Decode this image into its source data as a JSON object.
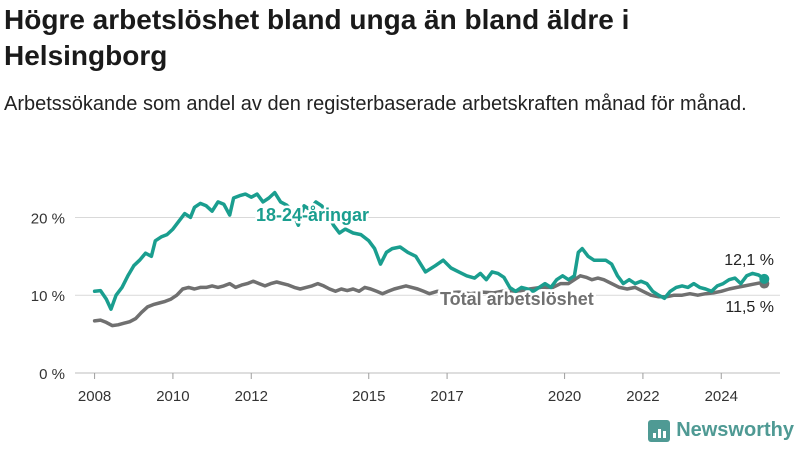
{
  "header": {
    "title": "Högre arbetslöshet bland unga än bland äldre i Helsingborg",
    "subtitle": "Arbetssökande som andel av den registerbaserade arbetskraften månad för månad."
  },
  "brand": {
    "name": "Newsworthy",
    "icon": "bar-chart-logo-icon"
  },
  "colors": {
    "young": "#1a9e8f",
    "total": "#707070",
    "grid": "#d9d9d9",
    "brand": "#4f9a94"
  },
  "chart_data": {
    "type": "line",
    "grid": true,
    "ylim": [
      0,
      22.5
    ],
    "yticks": [
      {
        "value": 0,
        "label": "0 %"
      },
      {
        "value": 10,
        "label": "10 %"
      },
      {
        "value": 20,
        "label": "20 %"
      }
    ],
    "xlim": [
      2007.5,
      2025.5
    ],
    "xticks": [
      {
        "value": 2008,
        "label": "2008"
      },
      {
        "value": 2010,
        "label": "2010"
      },
      {
        "value": 2012,
        "label": "2012"
      },
      {
        "value": 2015,
        "label": "2015"
      },
      {
        "value": 2017,
        "label": "2017"
      },
      {
        "value": 2020,
        "label": "2020"
      },
      {
        "value": 2022,
        "label": "2022"
      },
      {
        "value": 2024,
        "label": "2024"
      }
    ],
    "series": [
      {
        "name": "18-24-åringar",
        "end_label": "12,1 %",
        "points": [
          [
            2008.0,
            10.5
          ],
          [
            2008.15,
            10.6
          ],
          [
            2008.3,
            9.5
          ],
          [
            2008.42,
            8.2
          ],
          [
            2008.55,
            10.0
          ],
          [
            2008.7,
            11.0
          ],
          [
            2008.85,
            12.5
          ],
          [
            2009.0,
            13.8
          ],
          [
            2009.15,
            14.5
          ],
          [
            2009.3,
            15.4
          ],
          [
            2009.45,
            15.0
          ],
          [
            2009.55,
            17.0
          ],
          [
            2009.7,
            17.5
          ],
          [
            2009.85,
            17.8
          ],
          [
            2010.0,
            18.5
          ],
          [
            2010.15,
            19.5
          ],
          [
            2010.3,
            20.5
          ],
          [
            2010.45,
            20.0
          ],
          [
            2010.55,
            21.3
          ],
          [
            2010.7,
            21.8
          ],
          [
            2010.85,
            21.5
          ],
          [
            2011.0,
            20.8
          ],
          [
            2011.15,
            22.0
          ],
          [
            2011.3,
            21.7
          ],
          [
            2011.45,
            20.3
          ],
          [
            2011.55,
            22.5
          ],
          [
            2011.7,
            22.8
          ],
          [
            2011.85,
            23.0
          ],
          [
            2012.0,
            22.6
          ],
          [
            2012.15,
            23.0
          ],
          [
            2012.3,
            22.0
          ],
          [
            2012.45,
            22.5
          ],
          [
            2012.6,
            23.2
          ],
          [
            2012.75,
            22.0
          ],
          [
            2012.9,
            21.6
          ],
          [
            2013.05,
            20.8
          ],
          [
            2013.2,
            19.0
          ],
          [
            2013.35,
            21.5
          ],
          [
            2013.5,
            21.0
          ],
          [
            2013.65,
            22.0
          ],
          [
            2013.8,
            21.5
          ],
          [
            2013.95,
            20.5
          ],
          [
            2014.1,
            19.0
          ],
          [
            2014.25,
            18.0
          ],
          [
            2014.4,
            18.5
          ],
          [
            2014.6,
            18.0
          ],
          [
            2014.8,
            17.8
          ],
          [
            2015.0,
            17.0
          ],
          [
            2015.15,
            16.0
          ],
          [
            2015.3,
            14.0
          ],
          [
            2015.45,
            15.5
          ],
          [
            2015.6,
            16.0
          ],
          [
            2015.8,
            16.2
          ],
          [
            2016.0,
            15.5
          ],
          [
            2016.2,
            15.0
          ],
          [
            2016.45,
            13.0
          ],
          [
            2016.7,
            13.8
          ],
          [
            2016.9,
            14.5
          ],
          [
            2017.1,
            13.5
          ],
          [
            2017.3,
            13.0
          ],
          [
            2017.5,
            12.5
          ],
          [
            2017.7,
            12.2
          ],
          [
            2017.85,
            12.8
          ],
          [
            2018.0,
            12.0
          ],
          [
            2018.15,
            13.0
          ],
          [
            2018.3,
            12.8
          ],
          [
            2018.45,
            12.3
          ],
          [
            2018.6,
            11.0
          ],
          [
            2018.75,
            10.5
          ],
          [
            2018.9,
            11.0
          ],
          [
            2019.05,
            10.8
          ],
          [
            2019.2,
            10.5
          ],
          [
            2019.35,
            11.0
          ],
          [
            2019.5,
            11.5
          ],
          [
            2019.65,
            11.0
          ],
          [
            2019.8,
            12.0
          ],
          [
            2019.95,
            12.5
          ],
          [
            2020.1,
            12.0
          ],
          [
            2020.25,
            12.5
          ],
          [
            2020.35,
            15.5
          ],
          [
            2020.45,
            16.0
          ],
          [
            2020.6,
            15.0
          ],
          [
            2020.75,
            14.5
          ],
          [
            2020.9,
            14.5
          ],
          [
            2021.05,
            14.5
          ],
          [
            2021.2,
            14.0
          ],
          [
            2021.35,
            12.5
          ],
          [
            2021.5,
            11.5
          ],
          [
            2021.65,
            12.0
          ],
          [
            2021.8,
            11.5
          ],
          [
            2021.95,
            11.8
          ],
          [
            2022.1,
            11.5
          ],
          [
            2022.25,
            10.5
          ],
          [
            2022.4,
            10.0
          ],
          [
            2022.55,
            9.6
          ],
          [
            2022.7,
            10.5
          ],
          [
            2022.85,
            11.0
          ],
          [
            2023.0,
            11.2
          ],
          [
            2023.15,
            11.0
          ],
          [
            2023.3,
            11.5
          ],
          [
            2023.45,
            11.0
          ],
          [
            2023.6,
            10.8
          ],
          [
            2023.75,
            10.5
          ],
          [
            2023.9,
            11.2
          ],
          [
            2024.05,
            11.5
          ],
          [
            2024.2,
            12.0
          ],
          [
            2024.35,
            12.2
          ],
          [
            2024.5,
            11.5
          ],
          [
            2024.65,
            12.5
          ],
          [
            2024.8,
            12.8
          ],
          [
            2024.95,
            12.6
          ],
          [
            2025.1,
            12.1
          ]
        ]
      },
      {
        "name": "Total arbetslöshet",
        "end_label": "11,5 %",
        "points": [
          [
            2008.0,
            6.7
          ],
          [
            2008.15,
            6.8
          ],
          [
            2008.3,
            6.5
          ],
          [
            2008.45,
            6.1
          ],
          [
            2008.6,
            6.2
          ],
          [
            2008.75,
            6.4
          ],
          [
            2008.9,
            6.6
          ],
          [
            2009.05,
            7.0
          ],
          [
            2009.2,
            7.8
          ],
          [
            2009.35,
            8.5
          ],
          [
            2009.5,
            8.8
          ],
          [
            2009.65,
            9.0
          ],
          [
            2009.8,
            9.2
          ],
          [
            2009.95,
            9.5
          ],
          [
            2010.1,
            10.0
          ],
          [
            2010.25,
            10.8
          ],
          [
            2010.4,
            11.0
          ],
          [
            2010.55,
            10.8
          ],
          [
            2010.7,
            11.0
          ],
          [
            2010.85,
            11.0
          ],
          [
            2011.0,
            11.2
          ],
          [
            2011.15,
            11.0
          ],
          [
            2011.3,
            11.2
          ],
          [
            2011.45,
            11.5
          ],
          [
            2011.6,
            11.0
          ],
          [
            2011.75,
            11.3
          ],
          [
            2011.9,
            11.5
          ],
          [
            2012.05,
            11.8
          ],
          [
            2012.2,
            11.5
          ],
          [
            2012.35,
            11.2
          ],
          [
            2012.5,
            11.5
          ],
          [
            2012.65,
            11.7
          ],
          [
            2012.8,
            11.5
          ],
          [
            2012.95,
            11.3
          ],
          [
            2013.1,
            11.0
          ],
          [
            2013.25,
            10.8
          ],
          [
            2013.4,
            11.0
          ],
          [
            2013.55,
            11.2
          ],
          [
            2013.7,
            11.5
          ],
          [
            2013.85,
            11.2
          ],
          [
            2014.0,
            10.8
          ],
          [
            2014.15,
            10.5
          ],
          [
            2014.3,
            10.8
          ],
          [
            2014.45,
            10.6
          ],
          [
            2014.6,
            10.8
          ],
          [
            2014.75,
            10.5
          ],
          [
            2014.9,
            11.0
          ],
          [
            2015.05,
            10.8
          ],
          [
            2015.2,
            10.5
          ],
          [
            2015.35,
            10.2
          ],
          [
            2015.5,
            10.5
          ],
          [
            2015.65,
            10.8
          ],
          [
            2015.8,
            11.0
          ],
          [
            2015.95,
            11.2
          ],
          [
            2016.1,
            11.0
          ],
          [
            2016.25,
            10.8
          ],
          [
            2016.4,
            10.5
          ],
          [
            2016.55,
            10.2
          ],
          [
            2016.75,
            10.5
          ],
          [
            2017.0,
            10.3
          ],
          [
            2017.3,
            10.4
          ],
          [
            2017.6,
            10.2
          ],
          [
            2017.9,
            10.4
          ],
          [
            2018.2,
            10.3
          ],
          [
            2018.5,
            10.6
          ],
          [
            2018.8,
            10.5
          ],
          [
            2019.1,
            10.8
          ],
          [
            2019.4,
            11.0
          ],
          [
            2019.7,
            11.0
          ],
          [
            2019.9,
            11.5
          ],
          [
            2020.1,
            11.5
          ],
          [
            2020.25,
            12.0
          ],
          [
            2020.4,
            12.5
          ],
          [
            2020.55,
            12.3
          ],
          [
            2020.7,
            12.0
          ],
          [
            2020.85,
            12.2
          ],
          [
            2021.0,
            12.0
          ],
          [
            2021.2,
            11.5
          ],
          [
            2021.4,
            11.0
          ],
          [
            2021.6,
            10.8
          ],
          [
            2021.8,
            11.0
          ],
          [
            2022.0,
            10.5
          ],
          [
            2022.2,
            10.0
          ],
          [
            2022.4,
            9.8
          ],
          [
            2022.6,
            9.8
          ],
          [
            2022.8,
            10.0
          ],
          [
            2023.0,
            10.0
          ],
          [
            2023.2,
            10.2
          ],
          [
            2023.4,
            10.0
          ],
          [
            2023.6,
            10.2
          ],
          [
            2023.8,
            10.3
          ],
          [
            2024.0,
            10.5
          ],
          [
            2024.2,
            10.8
          ],
          [
            2024.4,
            11.0
          ],
          [
            2024.6,
            11.2
          ],
          [
            2024.8,
            11.4
          ],
          [
            2025.0,
            11.6
          ],
          [
            2025.1,
            11.5
          ]
        ]
      }
    ]
  }
}
